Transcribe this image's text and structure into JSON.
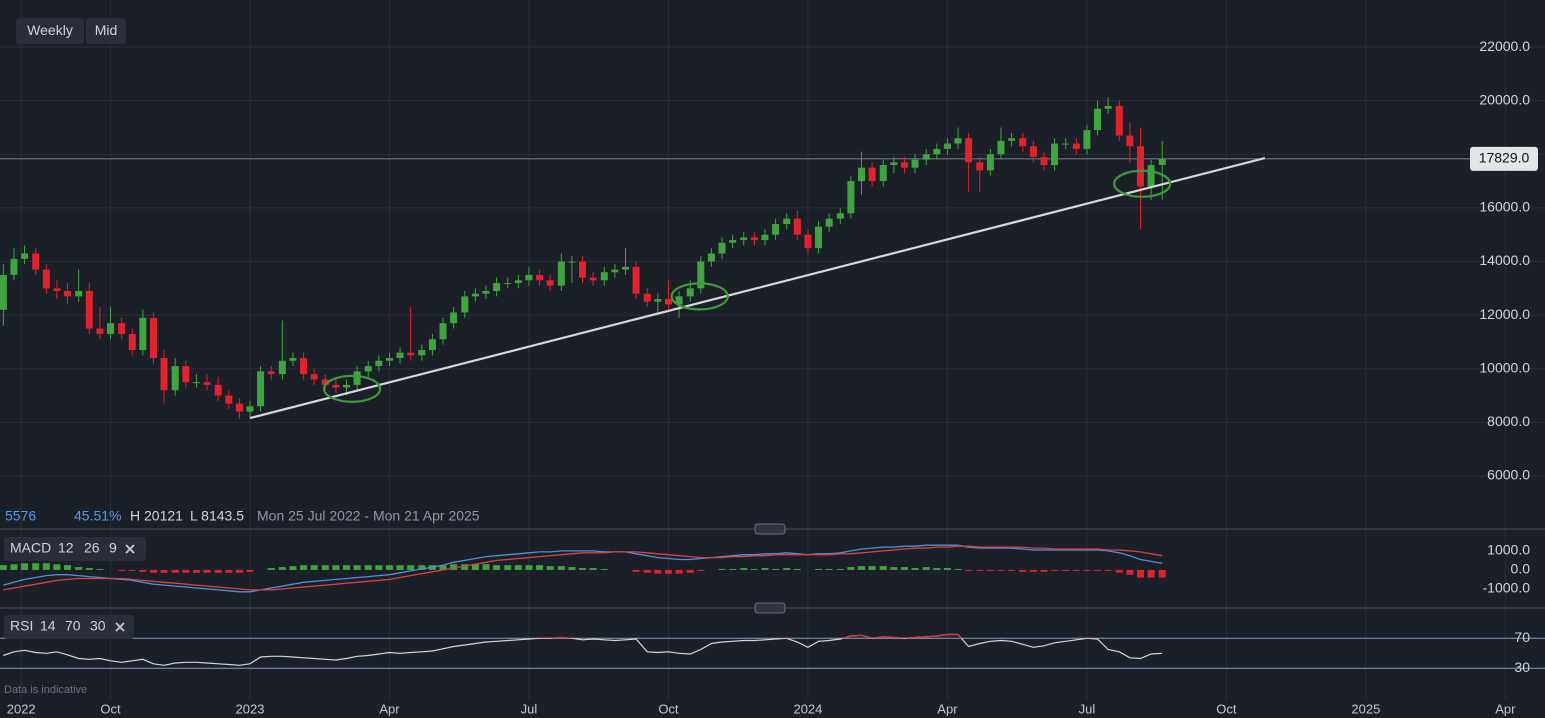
{
  "toolbar": {
    "interval": "Weekly",
    "price_type": "Mid"
  },
  "stats": {
    "change": "5576",
    "change_pct": "45.51%",
    "high": "H 20121",
    "low": "L 8143.5",
    "range": "Mon 25 Jul 2022 - Mon 21 Apr 2025"
  },
  "footer": "Data is indicative",
  "chart_data": {
    "type": "candlestick",
    "up_color": "#3fa63f",
    "down_color": "#e2222d",
    "grid": true,
    "xlim": [
      2022.552,
      2025.321
    ],
    "xticks": [
      {
        "value": 2022.59,
        "label": "2022"
      },
      {
        "value": 2022.75,
        "label": "Oct"
      },
      2023,
      {
        "value": 2023.25,
        "label": "Apr"
      },
      {
        "value": 2023.5,
        "label": "Jul"
      },
      {
        "value": 2023.75,
        "label": "Oct"
      },
      2024,
      {
        "value": 2024.25,
        "label": "Apr"
      },
      {
        "value": 2024.5,
        "label": "Jul"
      },
      {
        "value": 2024.75,
        "label": "Oct"
      },
      2025,
      {
        "value": 2025.25,
        "label": "Apr"
      }
    ],
    "ylim": [
      4918,
      23755
    ],
    "yticks": [
      {
        "value": 6000,
        "label": "6000.0"
      },
      {
        "value": 8000,
        "label": "8000.0"
      },
      {
        "value": 10000,
        "label": "10000.0"
      },
      {
        "value": 12000,
        "label": "12000.0"
      },
      {
        "value": 14000,
        "label": "14000.0"
      },
      {
        "value": 16000,
        "label": "16000.0"
      },
      {
        "value": 18000,
        "label": "18000.0"
      },
      {
        "value": 20000,
        "label": "20000.0"
      },
      {
        "value": 22000,
        "label": "22000.0"
      }
    ],
    "last_price": {
      "value": 17829,
      "label": "17829.0"
    },
    "x": [
      2022.558,
      2022.577,
      2022.596,
      2022.616,
      2022.635,
      2022.654,
      2022.673,
      2022.693,
      2022.712,
      2022.731,
      2022.75,
      2022.77,
      2022.789,
      2022.808,
      2022.827,
      2022.846,
      2022.866,
      2022.885,
      2022.904,
      2022.923,
      2022.943,
      2022.962,
      2022.981,
      2023.0,
      2023.019,
      2023.038,
      2023.058,
      2023.077,
      2023.096,
      2023.115,
      2023.135,
      2023.154,
      2023.173,
      2023.192,
      2023.212,
      2023.231,
      2023.25,
      2023.269,
      2023.288,
      2023.308,
      2023.327,
      2023.346,
      2023.365,
      2023.385,
      2023.404,
      2023.423,
      2023.442,
      2023.462,
      2023.481,
      2023.5,
      2023.519,
      2023.538,
      2023.558,
      2023.577,
      2023.596,
      2023.615,
      2023.635,
      2023.654,
      2023.673,
      2023.692,
      2023.712,
      2023.731,
      2023.75,
      2023.769,
      2023.789,
      2023.808,
      2023.827,
      2023.846,
      2023.865,
      2023.885,
      2023.904,
      2023.923,
      2023.942,
      2023.962,
      2023.981,
      2024.0,
      2024.019,
      2024.038,
      2024.058,
      2024.077,
      2024.096,
      2024.115,
      2024.135,
      2024.154,
      2024.173,
      2024.192,
      2024.212,
      2024.231,
      2024.25,
      2024.269,
      2024.288,
      2024.308,
      2024.327,
      2024.346,
      2024.365,
      2024.385,
      2024.404,
      2024.423,
      2024.442,
      2024.462,
      2024.481,
      2024.5,
      2024.519,
      2024.538,
      2024.558,
      2024.577,
      2024.596,
      2024.615,
      2024.635
    ],
    "open": [
      12200,
      13500,
      14100,
      14300,
      13700,
      13000,
      12900,
      12700,
      12900,
      11500,
      11300,
      11700,
      11300,
      10700,
      11900,
      10400,
      9200,
      10100,
      9500,
      9500,
      9400,
      9000,
      8700,
      8400,
      8600,
      9900,
      9800,
      10300,
      10400,
      9800,
      9600,
      9400,
      9300,
      9400,
      9900,
      10100,
      10300,
      10400,
      10600,
      10500,
      10700,
      11100,
      11700,
      12100,
      12700,
      12800,
      12900,
      13200,
      13200,
      13300,
      13500,
      13300,
      13100,
      14000,
      14000,
      13400,
      13300,
      13600,
      13700,
      13800,
      12800,
      12500,
      12600,
      12400,
      12700,
      13000,
      14000,
      14300,
      14700,
      14800,
      14900,
      14800,
      15000,
      15400,
      15600,
      15000,
      14500,
      15300,
      15600,
      15800,
      17000,
      17500,
      17000,
      17600,
      17700,
      17500,
      17800,
      18000,
      18200,
      18400,
      18600,
      17700,
      17400,
      18000,
      18500,
      18600,
      18300,
      17900,
      17600,
      18400,
      18400,
      18200,
      18900,
      19700,
      19800,
      18700,
      18300,
      16800,
      17600
    ],
    "high": [
      13900,
      14500,
      14600,
      14500,
      13900,
      13300,
      13200,
      13700,
      13200,
      12300,
      12300,
      11900,
      11500,
      12200,
      12100,
      10700,
      10400,
      10300,
      9800,
      9800,
      9700,
      9200,
      8900,
      8800,
      10100,
      10100,
      11800,
      10600,
      10600,
      10000,
      9800,
      9600,
      9600,
      10100,
      10300,
      10500,
      10600,
      10800,
      12300,
      10900,
      11300,
      11900,
      12300,
      12900,
      13000,
      13100,
      13400,
      13400,
      13500,
      13800,
      13700,
      13500,
      14300,
      14200,
      14200,
      13600,
      13800,
      13900,
      14500,
      14000,
      13000,
      12800,
      13300,
      12900,
      13300,
      14200,
      14500,
      14900,
      15000,
      15100,
      15100,
      15200,
      15600,
      15800,
      15900,
      15200,
      15500,
      15800,
      16000,
      17200,
      18100,
      17700,
      17800,
      17900,
      17900,
      18000,
      18200,
      18400,
      18600,
      19000,
      18800,
      17900,
      18200,
      19000,
      18800,
      18800,
      18500,
      18100,
      18600,
      18600,
      18600,
      19100,
      20000,
      20121,
      20000,
      19200,
      19000,
      17800,
      18500
    ],
    "low": [
      11600,
      13300,
      13900,
      13500,
      12800,
      12600,
      12400,
      12500,
      11300,
      11100,
      11100,
      11100,
      10500,
      10500,
      10200,
      8700,
      9000,
      9300,
      9300,
      9200,
      8800,
      8500,
      8143.5,
      8200,
      8400,
      9600,
      9600,
      10100,
      9600,
      9400,
      9200,
      9100,
      9000,
      9200,
      9700,
      9900,
      10100,
      10200,
      10300,
      10300,
      10500,
      10900,
      11500,
      11900,
      12500,
      12600,
      12700,
      13000,
      13000,
      13100,
      13100,
      12900,
      12900,
      13200,
      13200,
      13100,
      13100,
      13400,
      13500,
      12600,
      12300,
      12000,
      12200,
      11900,
      12500,
      12800,
      13800,
      14100,
      14500,
      14600,
      14600,
      14600,
      14800,
      15200,
      14800,
      14300,
      14300,
      15100,
      15400,
      15600,
      16500,
      16800,
      16800,
      17300,
      17300,
      17300,
      17600,
      17800,
      18000,
      18200,
      16600,
      16600,
      17200,
      17800,
      18300,
      18100,
      17700,
      17400,
      17400,
      18200,
      18000,
      18000,
      18700,
      19500,
      18500,
      17700,
      15200,
      16300,
      16300
    ],
    "close": [
      13500,
      14100,
      14300,
      13700,
      13000,
      12900,
      12700,
      12900,
      11500,
      11300,
      11700,
      11300,
      10700,
      11900,
      10400,
      9200,
      10100,
      9500,
      9500,
      9400,
      9000,
      8700,
      8400,
      8600,
      9900,
      9800,
      10300,
      10400,
      9800,
      9600,
      9400,
      9300,
      9400,
      9900,
      10100,
      10300,
      10400,
      10600,
      10500,
      10700,
      11100,
      11700,
      12100,
      12700,
      12800,
      12900,
      13200,
      13200,
      13300,
      13500,
      13300,
      13100,
      14000,
      14000,
      13400,
      13300,
      13600,
      13700,
      13800,
      12800,
      12500,
      12600,
      12400,
      12700,
      13000,
      14000,
      14300,
      14700,
      14800,
      14900,
      14800,
      15000,
      15400,
      15600,
      15000,
      14500,
      15300,
      15600,
      15800,
      17000,
      17500,
      17000,
      17600,
      17700,
      17500,
      17800,
      18000,
      18200,
      18400,
      18600,
      17700,
      17400,
      18000,
      18500,
      18600,
      18300,
      17900,
      17600,
      18400,
      18400,
      18200,
      18900,
      19700,
      19800,
      18700,
      18300,
      16800,
      17600,
      17829
    ],
    "trendline": {
      "color": "#d6d6d6",
      "x": [
        2023.0,
        2024.819
      ],
      "y": [
        8160,
        17860
      ]
    },
    "highlight_color": "#3e9a3e",
    "highlights": [
      {
        "x": 2023.183,
        "y": 9250
      },
      {
        "x": 2023.806,
        "y": 12700
      },
      {
        "x": 2024.599,
        "y": 16900
      }
    ],
    "indicators": {
      "macd": {
        "name": "MACD",
        "params": [
          12,
          26,
          9
        ],
        "ylim": [
          -1950,
          2100
        ],
        "yticks": [
          {
            "value": 1000,
            "label": "1000.0"
          },
          {
            "value": 0,
            "label": "0.0"
          },
          {
            "value": -1000,
            "label": "-1000.0"
          }
        ],
        "series": [
          {
            "color": "#4f8fdc",
            "values": [
              -800,
              -650,
              -500,
              -400,
              -300,
              -250,
              -250,
              -300,
              -350,
              -400,
              -450,
              -500,
              -550,
              -650,
              -750,
              -800,
              -850,
              -900,
              -950,
              -1000,
              -1050,
              -1100,
              -1150,
              -1150,
              -1050,
              -950,
              -850,
              -750,
              -650,
              -600,
              -550,
              -500,
              -450,
              -400,
              -350,
              -300,
              -250,
              -150,
              -50,
              50,
              150,
              250,
              400,
              500,
              600,
              700,
              750,
              800,
              850,
              900,
              950,
              950,
              1000,
              1000,
              1000,
              1000,
              950,
              950,
              950,
              850,
              750,
              650,
              600,
              550,
              550,
              600,
              650,
              700,
              750,
              800,
              800,
              850,
              850,
              900,
              850,
              800,
              850,
              850,
              900,
              1000,
              1100,
              1150,
              1200,
              1200,
              1250,
              1250,
              1300,
              1300,
              1300,
              1300,
              1200,
              1150,
              1150,
              1150,
              1150,
              1100,
              1050,
              1050,
              1050,
              1050,
              1050,
              1050,
              1050,
              1000,
              900,
              750,
              550,
              450,
              350
            ]
          },
          {
            "color": "#d9423f",
            "values": [
              -1050,
              -950,
              -850,
              -750,
              -650,
              -550,
              -500,
              -450,
              -450,
              -450,
              -450,
              -450,
              -500,
              -550,
              -600,
              -650,
              -700,
              -750,
              -800,
              -850,
              -900,
              -950,
              -1000,
              -1050,
              -1050,
              -1050,
              -1000,
              -950,
              -900,
              -850,
              -800,
              -750,
              -700,
              -650,
              -600,
              -550,
              -500,
              -400,
              -300,
              -200,
              -100,
              0,
              100,
              200,
              300,
              400,
              500,
              550,
              600,
              650,
              700,
              750,
              800,
              850,
              900,
              900,
              900,
              950,
              950,
              950,
              900,
              850,
              800,
              750,
              700,
              650,
              650,
              650,
              700,
              700,
              750,
              750,
              800,
              800,
              800,
              800,
              800,
              800,
              850,
              850,
              900,
              950,
              1000,
              1050,
              1100,
              1150,
              1150,
              1200,
              1200,
              1250,
              1250,
              1200,
              1200,
              1200,
              1200,
              1200,
              1150,
              1150,
              1100,
              1100,
              1100,
              1100,
              1100,
              1050,
              1050,
              1000,
              950,
              850,
              750
            ]
          }
        ],
        "histogram": {
          "up_color": "#3fa63f",
          "down_color": "#e2222d",
          "values": [
            250,
            300,
            350,
            350,
            350,
            300,
            250,
            150,
            100,
            50,
            0,
            -50,
            -50,
            -100,
            -150,
            -150,
            -150,
            -150,
            -150,
            -150,
            -150,
            -150,
            -150,
            -100,
            0,
            100,
            150,
            200,
            250,
            250,
            250,
            250,
            250,
            250,
            250,
            250,
            250,
            250,
            250,
            250,
            250,
            250,
            300,
            300,
            300,
            300,
            250,
            250,
            250,
            250,
            250,
            200,
            200,
            150,
            100,
            100,
            50,
            0,
            0,
            -100,
            -150,
            -200,
            -200,
            -200,
            -150,
            -50,
            0,
            50,
            50,
            100,
            50,
            100,
            50,
            100,
            50,
            0,
            50,
            50,
            50,
            150,
            200,
            200,
            200,
            150,
            150,
            100,
            150,
            100,
            100,
            50,
            -50,
            -50,
            -50,
            -50,
            -50,
            -100,
            -100,
            -100,
            -50,
            -50,
            -50,
            -50,
            -50,
            -50,
            -150,
            -250,
            -400,
            -400,
            -400
          ]
        }
      },
      "rsi": {
        "name": "RSI",
        "params": [
          14,
          70,
          30
        ],
        "ylim": [
          -19,
          105
        ],
        "yticks": [
          30,
          70
        ],
        "color": "#d6d6d6",
        "level_color": "#8e9fb8",
        "overbought_color": "#e0303a",
        "values": [
          47,
          52,
          54,
          51,
          50,
          52,
          48,
          43,
          42,
          43,
          40,
          38,
          40,
          42,
          36,
          34,
          37,
          38,
          38,
          37,
          36,
          35,
          34,
          36,
          45,
          46,
          46,
          45,
          44,
          43,
          42,
          41,
          43,
          46,
          47,
          49,
          51,
          50,
          51,
          52,
          53,
          56,
          59,
          61,
          63,
          65,
          66,
          67,
          68,
          69,
          70,
          70,
          71,
          70,
          68,
          69,
          68,
          67,
          68,
          69,
          52,
          51,
          52,
          50,
          49,
          55,
          63,
          65,
          66,
          67,
          67,
          68,
          69,
          70,
          65,
          58,
          66,
          67,
          69,
          73,
          74,
          70,
          72,
          71,
          70,
          71,
          72,
          73,
          75,
          75,
          59,
          63,
          66,
          67,
          66,
          62,
          58,
          60,
          64,
          66,
          68,
          70,
          69,
          55,
          52,
          44,
          43,
          49,
          50
        ]
      }
    }
  }
}
